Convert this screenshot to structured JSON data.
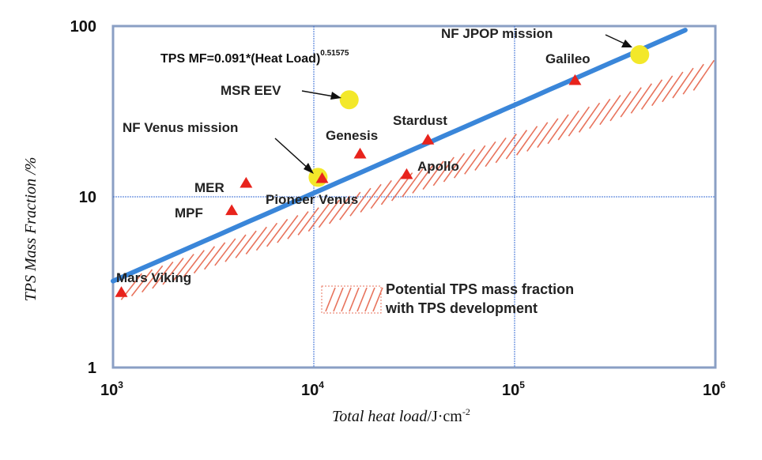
{
  "chart_data": {
    "type": "scatter",
    "x_scale": "log",
    "y_scale": "log",
    "xlim": [
      1000,
      1000000
    ],
    "ylim": [
      1,
      100
    ],
    "x_ticks": [
      {
        "value": 1000,
        "base": "10",
        "exp": "3"
      },
      {
        "value": 10000,
        "base": "10",
        "exp": "4"
      },
      {
        "value": 100000,
        "base": "10",
        "exp": "5"
      },
      {
        "value": 1000000,
        "base": "10",
        "exp": "6"
      }
    ],
    "y_ticks": [
      {
        "value": 1,
        "label": "1"
      },
      {
        "value": 10,
        "label": "10"
      },
      {
        "value": 100,
        "label": "100"
      }
    ],
    "grid": true,
    "xlabel": {
      "text": "Total heat load",
      "unit": "/J·cm",
      "unit_exp": "-2"
    },
    "ylabel": "TPS Mass Fraction /%",
    "fit": {
      "coefficient": 0.091,
      "exponent": 0.51575,
      "label": "TPS  MF=0.091*(Heat Load)",
      "label_exp": "0.51575",
      "color": "#3a86d9"
    },
    "missions": [
      {
        "name": "Mars Viking",
        "x": 1100,
        "y": 2.75
      },
      {
        "name": "MPF",
        "x": 3900,
        "y": 8.3
      },
      {
        "name": "MER",
        "x": 4600,
        "y": 12.0
      },
      {
        "name": "Pioneer Venus",
        "x": 11000,
        "y": 12.8
      },
      {
        "name": "Genesis",
        "x": 17000,
        "y": 17.8
      },
      {
        "name": "Apollo",
        "x": 29000,
        "y": 13.5
      },
      {
        "name": "Stardust",
        "x": 37000,
        "y": 21.5
      },
      {
        "name": "Galileo",
        "x": 200000,
        "y": 48.0
      }
    ],
    "proposed": [
      {
        "name": "MSR EEV",
        "x": 15000,
        "y": 37.0
      },
      {
        "name": "NF Venus mission",
        "x": 10500,
        "y": 13.0
      },
      {
        "name": "NF JPOP mission",
        "x": 420000,
        "y": 68.0
      }
    ],
    "band": {
      "label_line1": "Potential TPS mass fraction",
      "label_line2": "with TPS development",
      "color": "#e8735c"
    },
    "colors": {
      "triangle": "#e8231c",
      "circle": "#f3e82a",
      "grid": "#3b6fd4"
    }
  }
}
